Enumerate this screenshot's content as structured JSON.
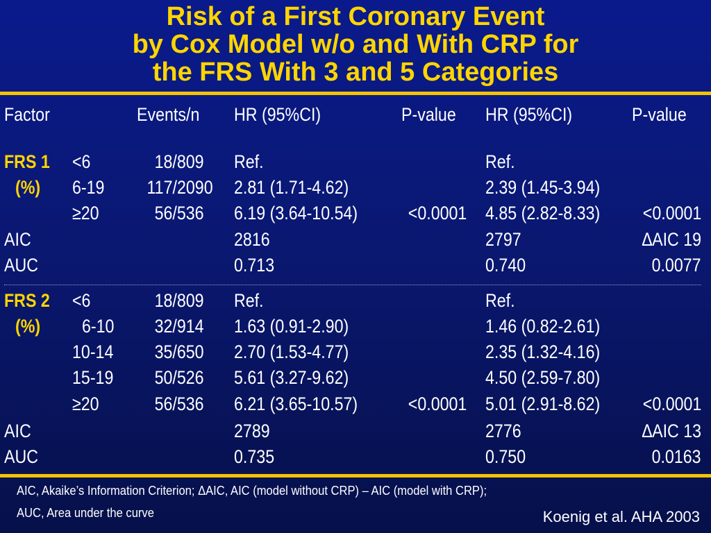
{
  "title": {
    "line1": "Risk of a First Coronary Event",
    "line2": "by Cox Model w/o and With CRP for",
    "line3": "the FRS With 3 and 5 Categories"
  },
  "colors": {
    "background": "#0a1872",
    "accent": "#ffd500",
    "text": "#ffffff"
  },
  "table": {
    "headers": {
      "factor": "Factor",
      "events": "Events/n",
      "hr1": "HR (95%CI)",
      "p1": "P-value",
      "hr2": "HR (95%CI)",
      "p2": "P-value"
    },
    "frs1": {
      "label_a": "FRS 1",
      "label_b": "(%)",
      "rows": [
        {
          "cat": "<6",
          "events": "18/809",
          "hr1": "Ref.",
          "p1": "",
          "hr2": "Ref.",
          "p2": ""
        },
        {
          "cat": "6-19",
          "events": "117/2090",
          "hr1": "2.81 (1.71-4.62)",
          "p1": "",
          "hr2": "2.39 (1.45-3.94)",
          "p2": ""
        },
        {
          "cat": "≥20",
          "events": "56/536",
          "hr1": "6.19 (3.64-10.54)",
          "p1": "<0.0001",
          "hr2": "4.85 (2.82-8.33)",
          "p2": "<0.0001"
        }
      ],
      "aic": {
        "label": "AIC",
        "hr1": "2816",
        "hr2": "2797",
        "p2": "∆AIC 19"
      },
      "auc": {
        "label": "AUC",
        "hr1": "0.713",
        "hr2": "0.740",
        "p2": "0.0077"
      }
    },
    "frs2": {
      "label_a": "FRS 2",
      "label_b": "(%)",
      "rows": [
        {
          "cat": "<6",
          "events": "18/809",
          "hr1": "Ref.",
          "p1": "",
          "hr2": "Ref.",
          "p2": ""
        },
        {
          "cat": "6-10",
          "events": "32/914",
          "hr1": "1.63 (0.91-2.90)",
          "p1": "",
          "hr2": "1.46 (0.82-2.61)",
          "p2": ""
        },
        {
          "cat": "10-14",
          "events": "35/650",
          "hr1": "2.70 (1.53-4.77)",
          "p1": "",
          "hr2": "2.35 (1.32-4.16)",
          "p2": ""
        },
        {
          "cat": "15-19",
          "events": "50/526",
          "hr1": "5.61 (3.27-9.62)",
          "p1": "",
          "hr2": "4.50 (2.59-7.80)",
          "p2": ""
        },
        {
          "cat": "≥20",
          "events": "56/536",
          "hr1": "6.21 (3.65-10.57)",
          "p1": "<0.0001",
          "hr2": "5.01 (2.91-8.62)",
          "p2": "<0.0001"
        }
      ],
      "aic": {
        "label": "AIC",
        "hr1": "2789",
        "hr2": "2776",
        "p2": "∆AIC 13"
      },
      "auc": {
        "label": "AUC",
        "hr1": "0.735",
        "hr2": "0.750",
        "p2": "0.0163"
      }
    }
  },
  "footnote": {
    "line1": "AIC, Akaike’s Information Criterion; ΔAIC, AIC (model without CRP) – AIC (model with CRP);",
    "line2": "AUC, Area under the curve"
  },
  "citation": "Koenig et al. AHA 2003"
}
